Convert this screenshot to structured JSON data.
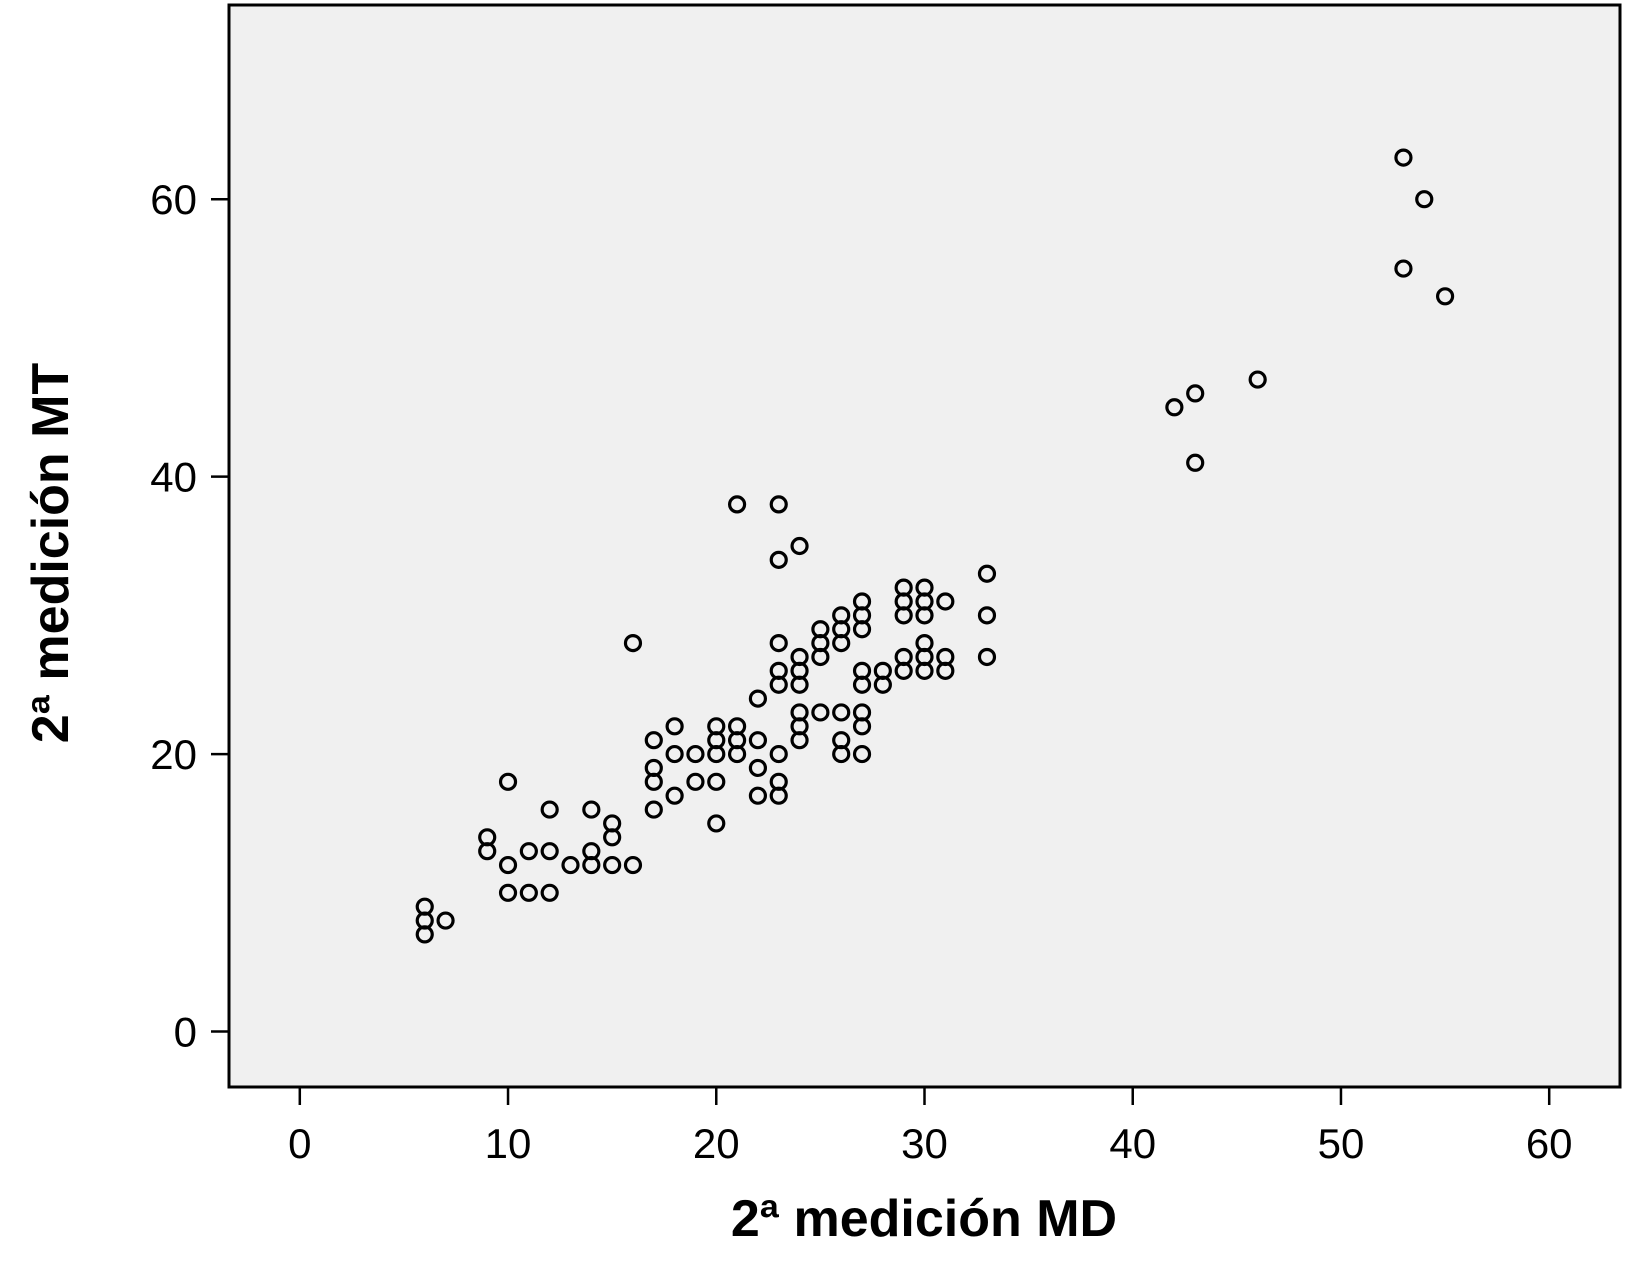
{
  "chart_data": {
    "type": "scatter",
    "title": "",
    "xlabel": "2ª medición MD",
    "ylabel": "2ª medición MT",
    "xlim": [
      -3.4,
      63.4
    ],
    "ylim": [
      -4,
      74
    ],
    "xticks": [
      0,
      10,
      20,
      30,
      40,
      50,
      60
    ],
    "yticks": [
      0,
      20,
      40,
      60
    ],
    "xtick_labels": [
      "0",
      "10",
      "20",
      "30",
      "40",
      "50",
      "60"
    ],
    "ytick_labels": [
      "0",
      "20",
      "40",
      "60"
    ],
    "grid": false,
    "marker": "open-circle",
    "colors": {
      "background": "#f0f0f0",
      "marker": "#000000"
    },
    "points": [
      [
        6,
        7
      ],
      [
        6,
        8
      ],
      [
        6,
        9
      ],
      [
        7,
        8
      ],
      [
        9,
        13
      ],
      [
        9,
        14
      ],
      [
        10,
        10
      ],
      [
        10,
        12
      ],
      [
        10,
        18
      ],
      [
        11,
        10
      ],
      [
        11,
        13
      ],
      [
        12,
        10
      ],
      [
        12,
        13
      ],
      [
        12,
        16
      ],
      [
        13,
        12
      ],
      [
        14,
        12
      ],
      [
        14,
        13
      ],
      [
        14,
        16
      ],
      [
        15,
        12
      ],
      [
        15,
        14
      ],
      [
        15,
        15
      ],
      [
        16,
        12
      ],
      [
        16,
        28
      ],
      [
        17,
        16
      ],
      [
        17,
        18
      ],
      [
        17,
        19
      ],
      [
        17,
        21
      ],
      [
        18,
        17
      ],
      [
        18,
        20
      ],
      [
        18,
        22
      ],
      [
        19,
        18
      ],
      [
        19,
        20
      ],
      [
        20,
        15
      ],
      [
        20,
        18
      ],
      [
        20,
        20
      ],
      [
        20,
        21
      ],
      [
        20,
        22
      ],
      [
        21,
        20
      ],
      [
        21,
        21
      ],
      [
        21,
        22
      ],
      [
        21,
        38
      ],
      [
        22,
        17
      ],
      [
        22,
        19
      ],
      [
        22,
        21
      ],
      [
        22,
        24
      ],
      [
        23,
        17
      ],
      [
        23,
        18
      ],
      [
        23,
        20
      ],
      [
        23,
        25
      ],
      [
        23,
        26
      ],
      [
        23,
        28
      ],
      [
        23,
        34
      ],
      [
        23,
        38
      ],
      [
        24,
        21
      ],
      [
        24,
        22
      ],
      [
        24,
        23
      ],
      [
        24,
        25
      ],
      [
        24,
        26
      ],
      [
        24,
        27
      ],
      [
        24,
        35
      ],
      [
        25,
        23
      ],
      [
        25,
        27
      ],
      [
        25,
        28
      ],
      [
        25,
        29
      ],
      [
        26,
        20
      ],
      [
        26,
        21
      ],
      [
        26,
        23
      ],
      [
        26,
        28
      ],
      [
        26,
        29
      ],
      [
        26,
        30
      ],
      [
        27,
        20
      ],
      [
        27,
        22
      ],
      [
        27,
        23
      ],
      [
        27,
        25
      ],
      [
        27,
        26
      ],
      [
        27,
        29
      ],
      [
        27,
        30
      ],
      [
        27,
        31
      ],
      [
        28,
        25
      ],
      [
        28,
        26
      ],
      [
        29,
        26
      ],
      [
        29,
        27
      ],
      [
        29,
        30
      ],
      [
        29,
        31
      ],
      [
        29,
        32
      ],
      [
        30,
        26
      ],
      [
        30,
        27
      ],
      [
        30,
        28
      ],
      [
        30,
        30
      ],
      [
        30,
        31
      ],
      [
        30,
        32
      ],
      [
        31,
        26
      ],
      [
        31,
        27
      ],
      [
        31,
        31
      ],
      [
        33,
        27
      ],
      [
        33,
        30
      ],
      [
        33,
        33
      ],
      [
        42,
        45
      ],
      [
        43,
        41
      ],
      [
        43,
        46
      ],
      [
        46,
        47
      ],
      [
        53,
        55
      ],
      [
        53,
        63
      ],
      [
        54,
        60
      ],
      [
        55,
        53
      ]
    ]
  }
}
